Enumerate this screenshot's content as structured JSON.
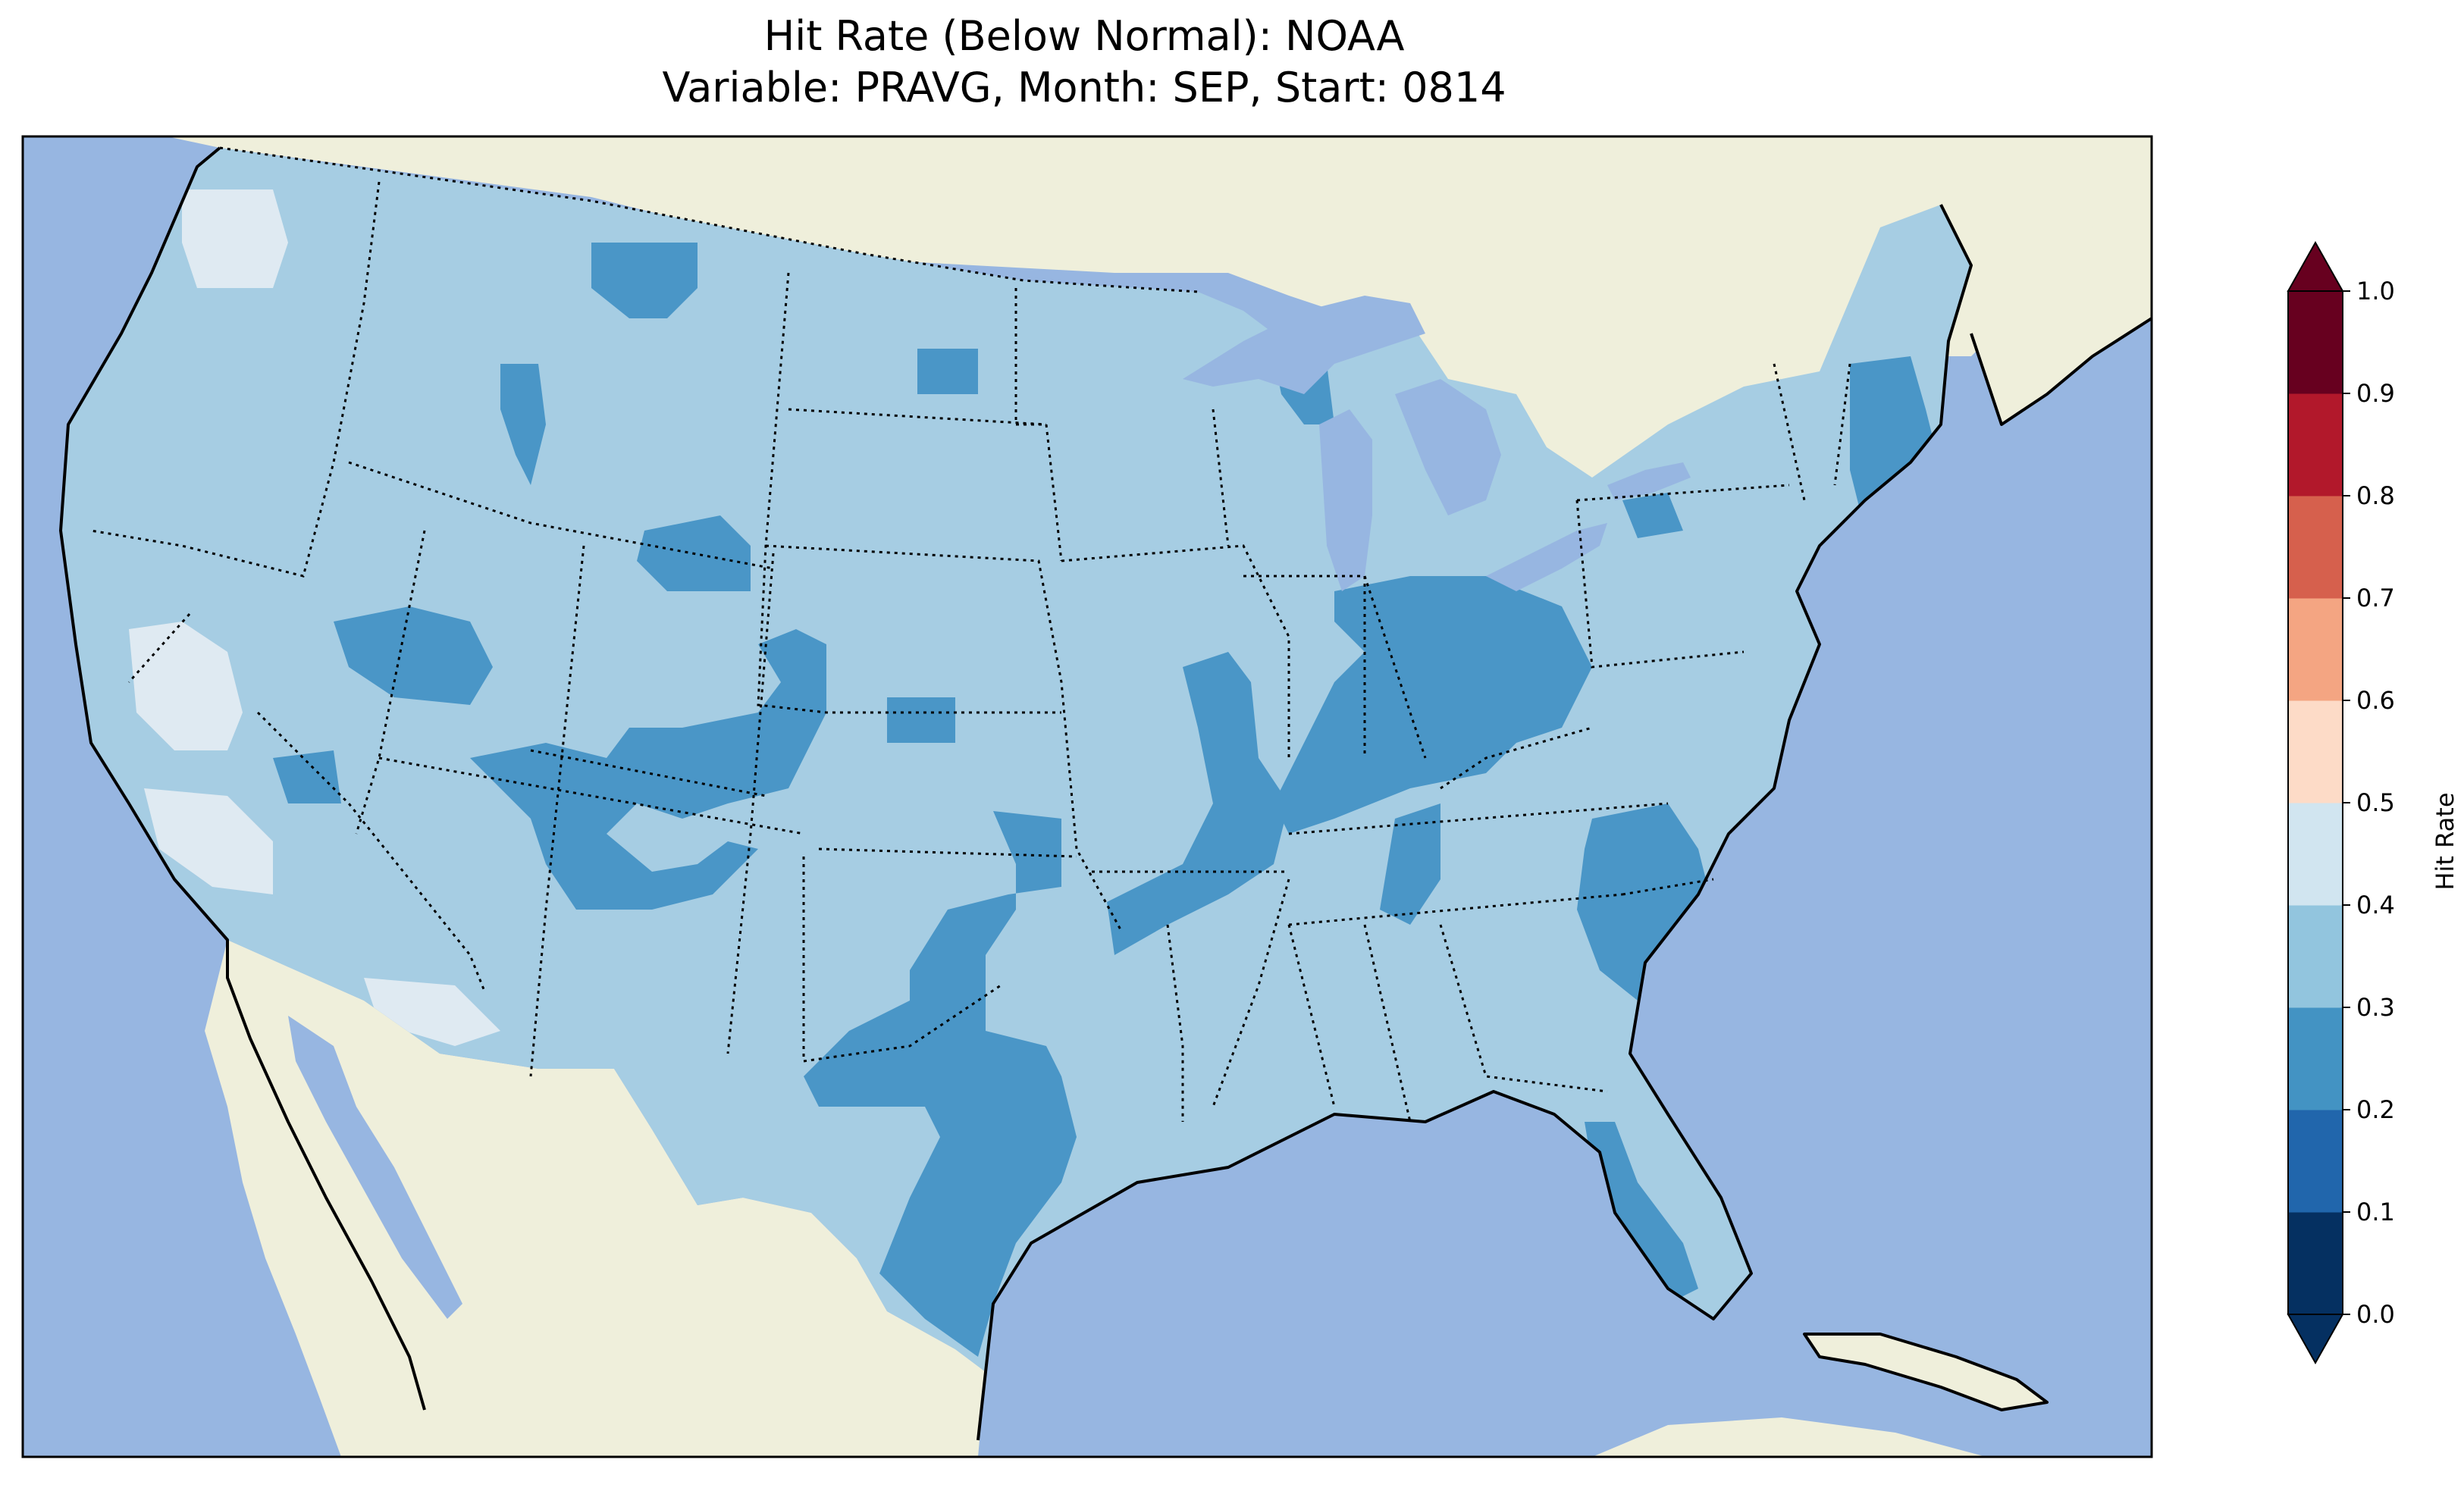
{
  "title": {
    "line1": "Hit Rate (Below Normal): NOAA",
    "line2": "Variable: PRAVG, Month: SEP, Start: 0814"
  },
  "colorbar": {
    "label": "Hit Rate",
    "ticks": [
      "0.0",
      "0.1",
      "0.2",
      "0.3",
      "0.4",
      "0.5",
      "0.6",
      "0.7",
      "0.8",
      "0.9",
      "1.0"
    ],
    "colors": [
      "#053061",
      "#2166ac",
      "#4393c3",
      "#92c5de",
      "#d1e5f0",
      "#fddbc7",
      "#f4a582",
      "#d6604d",
      "#b2182b",
      "#67001f"
    ],
    "extend": "both"
  },
  "map": {
    "region": "Contiguous United States",
    "ocean_color": "#97b6e1",
    "land_color": "#efefdb",
    "field_levels": {
      "0.2-0.3": "#4a96c7",
      "0.3-0.4": "#a6cde3",
      "0.4-0.5": "#dfeaf2"
    }
  }
}
